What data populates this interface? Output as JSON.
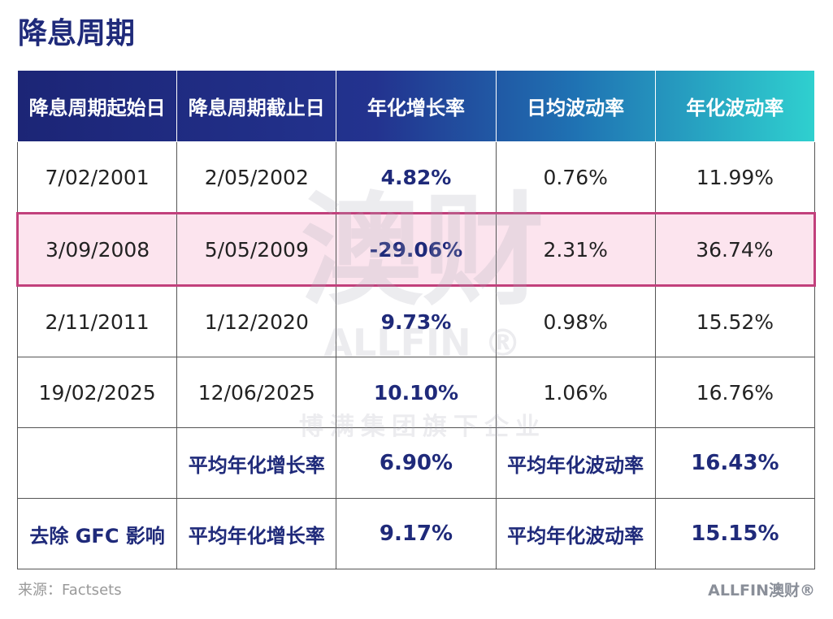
{
  "header": {
    "title": "降息周期"
  },
  "table": {
    "columns": [
      "降息周期起始日",
      "降息周期截止日",
      "年化增长率",
      "日均波动率",
      "年化波动率"
    ],
    "rows": [
      {
        "cells": [
          "7/02/2001",
          "2/05/2002",
          "4.82%",
          "0.76%",
          "11.99%"
        ],
        "highlighted": false
      },
      {
        "cells": [
          "3/09/2008",
          "5/05/2009",
          "-29.06%",
          "2.31%",
          "36.74%"
        ],
        "highlighted": true
      },
      {
        "cells": [
          "2/11/2011",
          "1/12/2020",
          "9.73%",
          "0.98%",
          "15.52%"
        ],
        "highlighted": false
      },
      {
        "cells": [
          "19/02/2025",
          "12/06/2025",
          "10.10%",
          "1.06%",
          "16.76%"
        ],
        "highlighted": false
      },
      {
        "cells": [
          null,
          "平均年化增长率",
          "6.90%",
          "平均年化波动率",
          "16.43%"
        ],
        "highlighted": false
      },
      {
        "cells": [
          "去除 GFC 影响",
          "平均年化增长率",
          "9.17%",
          "平均年化波动率",
          "15.15%"
        ],
        "highlighted": false
      }
    ]
  },
  "watermark": {
    "logo": "澳财",
    "brand": "ALLFIN ®",
    "tagline": "博满集团旗下企业"
  },
  "footer": {
    "source": "来源：Factsets",
    "logo": "ALLFIN澳财®"
  }
}
